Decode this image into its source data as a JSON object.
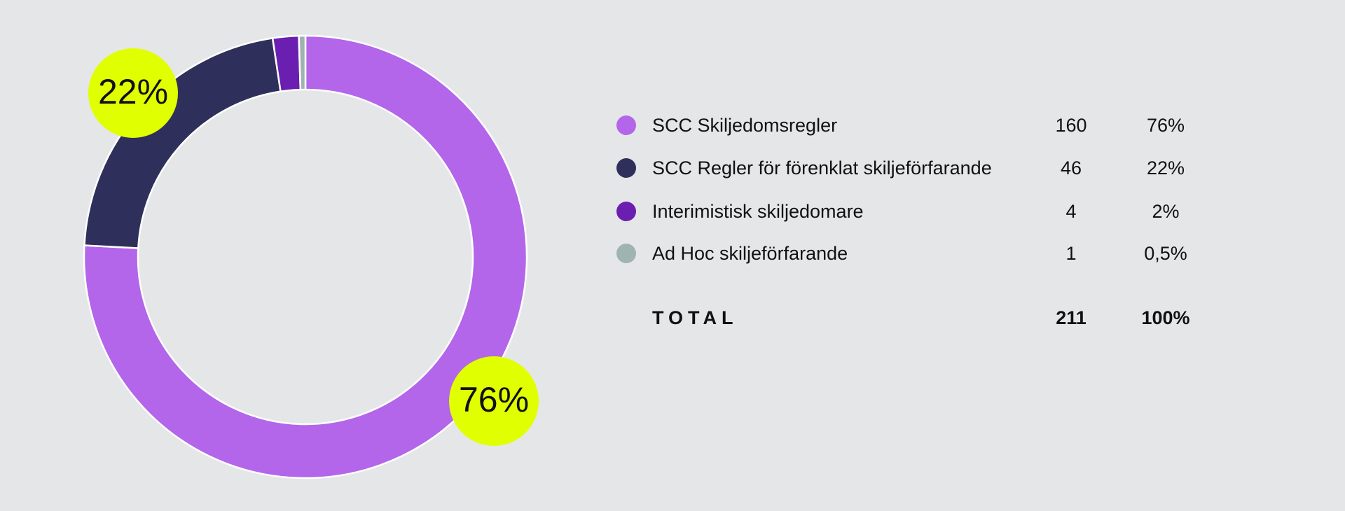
{
  "chart_data": {
    "type": "pie",
    "donut": true,
    "categories": [
      "SCC Skiljedomsregler",
      "SCC Regler för förenklat skiljeförfarande",
      "Interimistisk skiljedomare",
      "Ad Hoc skiljeförfarande"
    ],
    "values": [
      160,
      46,
      4,
      1
    ],
    "colors": [
      "#b366ea",
      "#2f2f5c",
      "#6b1fb0",
      "#9fb3b0"
    ],
    "percent_labels": [
      "76%",
      "22%",
      "2%",
      "0,5%"
    ],
    "highlight_color": "#e0ff00",
    "total": {
      "label": "TOTAL",
      "value": 211,
      "percent_label": "100%"
    }
  }
}
